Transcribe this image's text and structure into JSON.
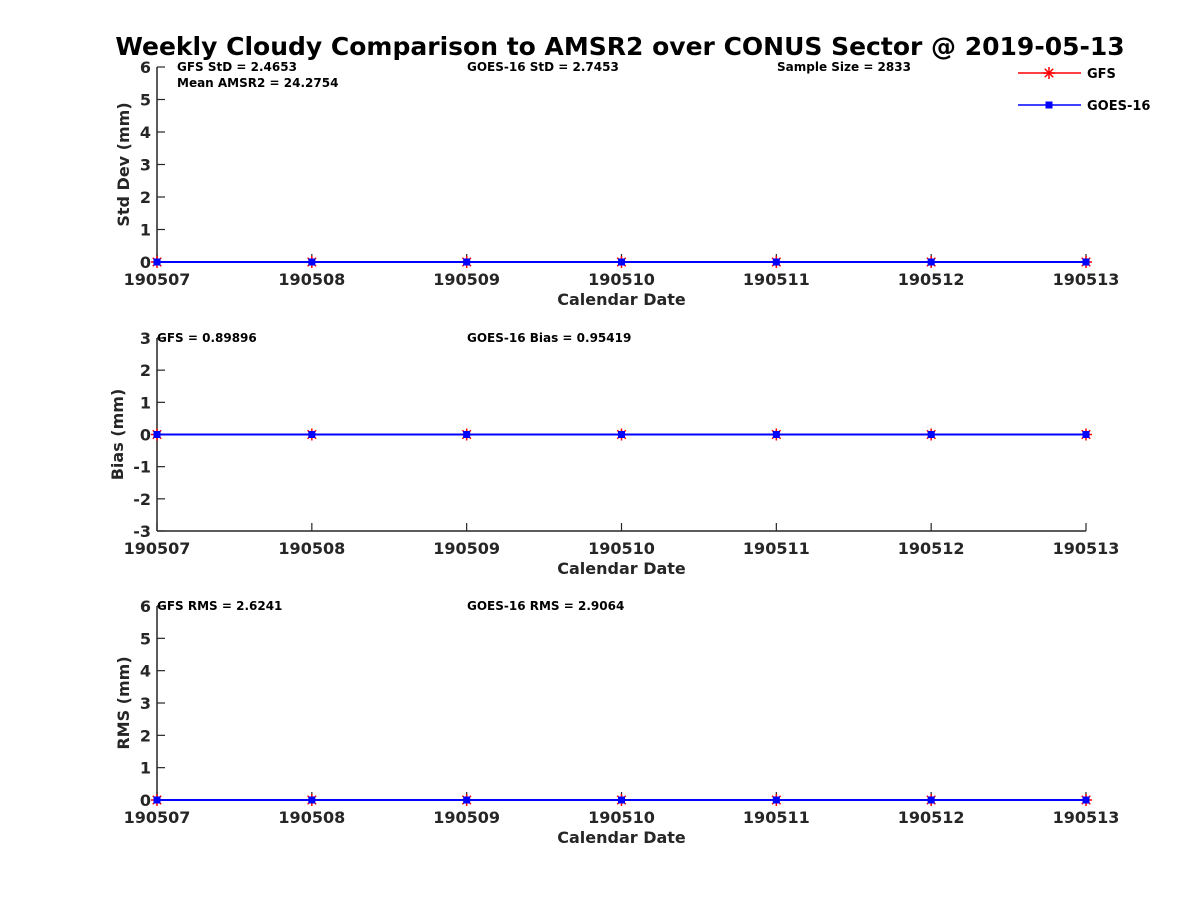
{
  "chart_data": {
    "title": "Weekly Cloudy Comparison to AMSR2 over CONUS Sector @ 2019-05-13",
    "legend": {
      "position": "top-right",
      "entries": [
        {
          "name": "GFS",
          "color": "#ff0000",
          "marker": "asterisk"
        },
        {
          "name": "GOES-16",
          "color": "#0000ff",
          "marker": "square"
        }
      ]
    },
    "panels": [
      {
        "type": "line",
        "xlabel": "Calendar Date",
        "ylabel": "Std Dev (mm)",
        "x": [
          "190507",
          "190508",
          "190509",
          "190510",
          "190511",
          "190512",
          "190513"
        ],
        "ylim": [
          0,
          6
        ],
        "yticks": [
          "0",
          "1",
          "2",
          "3",
          "4",
          "5",
          "6"
        ],
        "zero_line": false,
        "series": [
          {
            "name": "GFS",
            "color": "#ff0000",
            "marker": "asterisk",
            "values": [
              0,
              0,
              0,
              0,
              0,
              0,
              0
            ]
          },
          {
            "name": "GOES-16",
            "color": "#0000ff",
            "marker": "square",
            "values": [
              0,
              0,
              0,
              0,
              0,
              0,
              0
            ]
          }
        ],
        "annotations": [
          {
            "text": "GFS StD = 2.4653",
            "row": 0,
            "col": "left"
          },
          {
            "text": "Mean AMSR2 = 24.2754",
            "row": 1,
            "col": "left"
          },
          {
            "text": "GOES-16 StD = 2.7453",
            "row": 0,
            "col": "middle"
          },
          {
            "text": "Sample Size = 2833",
            "row": 0,
            "col": "right"
          }
        ]
      },
      {
        "type": "line",
        "xlabel": "Calendar Date",
        "ylabel": "Bias (mm)",
        "x": [
          "190507",
          "190508",
          "190509",
          "190510",
          "190511",
          "190512",
          "190513"
        ],
        "ylim": [
          -3,
          3
        ],
        "yticks": [
          "-3",
          "-2",
          "-1",
          "0",
          "1",
          "2",
          "3"
        ],
        "zero_line": true,
        "series": [
          {
            "name": "GFS",
            "color": "#ff0000",
            "marker": "asterisk",
            "values": [
              0,
              0,
              0,
              0,
              0,
              0,
              0
            ]
          },
          {
            "name": "GOES-16",
            "color": "#0000ff",
            "marker": "square",
            "values": [
              0,
              0,
              0,
              0,
              0,
              0,
              0
            ]
          }
        ],
        "annotations": [
          {
            "text": "GFS = 0.89896",
            "row": 0,
            "col": "left"
          },
          {
            "text": "GOES-16 Bias  = 0.95419",
            "row": 0,
            "col": "middle"
          }
        ]
      },
      {
        "type": "line",
        "xlabel": "Calendar Date",
        "ylabel": "RMS (mm)",
        "x": [
          "190507",
          "190508",
          "190509",
          "190510",
          "190511",
          "190512",
          "190513"
        ],
        "ylim": [
          0,
          6
        ],
        "yticks": [
          "0",
          "1",
          "2",
          "3",
          "4",
          "5",
          "6"
        ],
        "zero_line": false,
        "series": [
          {
            "name": "GFS",
            "color": "#ff0000",
            "marker": "asterisk",
            "values": [
              0,
              0,
              0,
              0,
              0,
              0,
              0
            ]
          },
          {
            "name": "GOES-16",
            "color": "#0000ff",
            "marker": "square",
            "values": [
              0,
              0,
              0,
              0,
              0,
              0,
              0
            ]
          }
        ],
        "annotations": [
          {
            "text": "GFS RMS = 2.6241",
            "row": 0,
            "col": "left"
          },
          {
            "text": "GOES-16 RMS = 2.9064",
            "row": 0,
            "col": "middle"
          }
        ]
      }
    ]
  }
}
